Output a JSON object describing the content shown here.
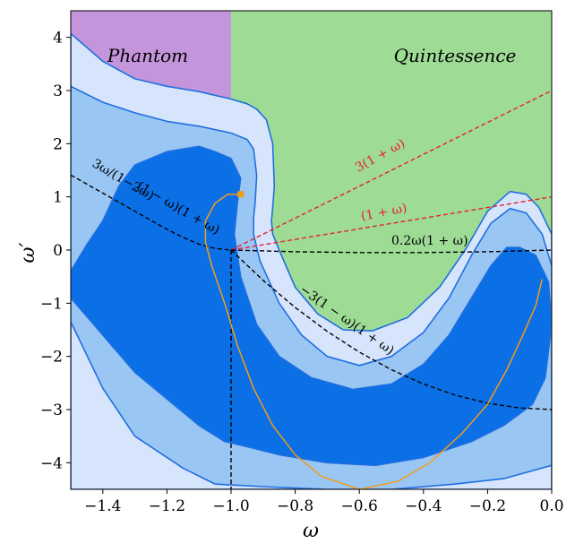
{
  "chart_data": {
    "type": "contour",
    "xlabel": "ω",
    "ylabel": "ω′",
    "xlim": [
      -1.5,
      0.0
    ],
    "ylim": [
      -4.5,
      4.5
    ],
    "x_ticks": [
      -1.4,
      -1.2,
      -1.0,
      -0.8,
      -0.6,
      -0.4,
      -0.2,
      0.0
    ],
    "x_tick_labels": [
      "−1.4",
      "−1.2",
      "−1.0",
      "−0.8",
      "−0.6",
      "−0.4",
      "−0.2",
      "0.0"
    ],
    "y_ticks": [
      -4,
      -3,
      -2,
      -1,
      0,
      1,
      2,
      3,
      4
    ],
    "y_tick_labels": [
      "−4",
      "−3",
      "−2",
      "−1",
      "0",
      "1",
      "2",
      "3",
      "4"
    ],
    "grid": false,
    "regions": [
      {
        "label": "Phantom",
        "x_range": [
          -1.5,
          -1.0
        ],
        "color": "#c495da"
      },
      {
        "label": "Quintessence",
        "x_range": [
          -1.0,
          0.0
        ],
        "color": "#9edc96"
      }
    ],
    "contours": [
      {
        "level": "outer",
        "color": "#d6e5fb",
        "points": [
          [
            -1.5,
            4.07
          ],
          [
            -1.4,
            3.55
          ],
          [
            -1.3,
            3.22
          ],
          [
            -1.2,
            3.08
          ],
          [
            -1.1,
            2.98
          ],
          [
            -1.0,
            2.84
          ],
          [
            -0.95,
            2.75
          ],
          [
            -0.92,
            2.65
          ],
          [
            -0.89,
            2.45
          ],
          [
            -0.87,
            2.0
          ],
          [
            -0.865,
            1.2
          ],
          [
            -0.87,
            0.8
          ],
          [
            -0.874,
            0.55
          ],
          [
            -0.87,
            0.3
          ],
          [
            -0.85,
            0.0
          ],
          [
            -0.8,
            -0.7
          ],
          [
            -0.73,
            -1.2
          ],
          [
            -0.65,
            -1.5
          ],
          [
            -0.56,
            -1.52
          ],
          [
            -0.45,
            -1.27
          ],
          [
            -0.35,
            -0.7
          ],
          [
            -0.27,
            0.0
          ],
          [
            -0.2,
            0.73
          ],
          [
            -0.13,
            1.1
          ],
          [
            -0.08,
            1.05
          ],
          [
            -0.04,
            0.8
          ],
          [
            0.0,
            0.3
          ],
          [
            0.0,
            -4.5
          ],
          [
            -0.22,
            -4.5
          ],
          [
            -0.5,
            -4.5
          ],
          [
            -0.8,
            -4.5
          ],
          [
            -1.05,
            -4.5
          ],
          [
            -1.3,
            -4.5
          ],
          [
            -1.5,
            -4.5
          ]
        ]
      },
      {
        "level": "middle",
        "color": "#9ac6f4",
        "points": [
          [
            -1.5,
            3.08
          ],
          [
            -1.4,
            2.78
          ],
          [
            -1.3,
            2.58
          ],
          [
            -1.2,
            2.42
          ],
          [
            -1.1,
            2.33
          ],
          [
            -1.0,
            2.2
          ],
          [
            -0.95,
            2.08
          ],
          [
            -0.93,
            1.9
          ],
          [
            -0.92,
            1.4
          ],
          [
            -0.925,
            0.9
          ],
          [
            -0.93,
            0.6
          ],
          [
            -0.93,
            0.3
          ],
          [
            -0.91,
            -0.2
          ],
          [
            -0.85,
            -1.0
          ],
          [
            -0.78,
            -1.6
          ],
          [
            -0.7,
            -2.0
          ],
          [
            -0.6,
            -2.17
          ],
          [
            -0.5,
            -2.0
          ],
          [
            -0.4,
            -1.55
          ],
          [
            -0.32,
            -0.9
          ],
          [
            -0.25,
            -0.1
          ],
          [
            -0.19,
            0.5
          ],
          [
            -0.13,
            0.78
          ],
          [
            -0.08,
            0.7
          ],
          [
            -0.03,
            0.3
          ],
          [
            0.0,
            -0.3
          ],
          [
            0.0,
            -4.05
          ],
          [
            -0.15,
            -4.3
          ],
          [
            -0.3,
            -4.4
          ],
          [
            -0.5,
            -4.5
          ],
          [
            -0.7,
            -4.5
          ],
          [
            -0.9,
            -4.45
          ],
          [
            -1.05,
            -4.4
          ],
          [
            -1.15,
            -4.1
          ],
          [
            -1.3,
            -3.5
          ],
          [
            -1.4,
            -2.6
          ],
          [
            -1.5,
            -1.35
          ]
        ]
      },
      {
        "level": "inner",
        "color": "#0b6fe5",
        "points": [
          [
            -1.5,
            -0.4
          ],
          [
            -1.45,
            0.1
          ],
          [
            -1.4,
            0.55
          ],
          [
            -1.35,
            1.2
          ],
          [
            -1.3,
            1.6
          ],
          [
            -1.2,
            1.85
          ],
          [
            -1.1,
            1.95
          ],
          [
            -1.05,
            1.85
          ],
          [
            -1.0,
            1.72
          ],
          [
            -0.97,
            1.35
          ],
          [
            -0.98,
            0.9
          ],
          [
            -0.99,
            0.3
          ],
          [
            -0.97,
            -0.5
          ],
          [
            -0.92,
            -1.4
          ],
          [
            -0.85,
            -2.0
          ],
          [
            -0.75,
            -2.4
          ],
          [
            -0.62,
            -2.62
          ],
          [
            -0.5,
            -2.52
          ],
          [
            -0.4,
            -2.15
          ],
          [
            -0.32,
            -1.6
          ],
          [
            -0.25,
            -0.9
          ],
          [
            -0.19,
            -0.3
          ],
          [
            -0.14,
            0.05
          ],
          [
            -0.1,
            0.05
          ],
          [
            -0.05,
            -0.1
          ],
          [
            -0.01,
            -0.6
          ],
          [
            0.0,
            -1.4
          ],
          [
            -0.02,
            -2.4
          ],
          [
            -0.06,
            -2.9
          ],
          [
            -0.15,
            -3.3
          ],
          [
            -0.25,
            -3.6
          ],
          [
            -0.4,
            -3.9
          ],
          [
            -0.55,
            -4.05
          ],
          [
            -0.7,
            -4.0
          ],
          [
            -0.85,
            -3.85
          ],
          [
            -0.95,
            -3.7
          ],
          [
            -1.02,
            -3.6
          ],
          [
            -1.1,
            -3.3
          ],
          [
            -1.2,
            -2.8
          ],
          [
            -1.3,
            -2.3
          ],
          [
            -1.4,
            -1.6
          ],
          [
            -1.5,
            -0.9
          ]
        ]
      }
    ],
    "lines": [
      {
        "label": "(1+ω)",
        "style": "dashed",
        "color": "#e8202a",
        "points": [
          [
            -1.0,
            0.0
          ],
          [
            0.0,
            1.0
          ]
        ]
      },
      {
        "label": "3(1+ω)",
        "style": "dashed",
        "color": "#e8202a",
        "points": [
          [
            -1.0,
            0.0
          ],
          [
            0.0,
            3.0
          ]
        ]
      },
      {
        "label": "0.2ω(1+ω)",
        "style": "dashed",
        "color": "#000000",
        "points": [
          [
            -1.0,
            0.0
          ],
          [
            -0.8,
            -0.032
          ],
          [
            -0.6,
            -0.048
          ],
          [
            -0.4,
            -0.048
          ],
          [
            -0.2,
            -0.032
          ],
          [
            0.0,
            0.0
          ]
        ]
      },
      {
        "label": "−3(1−ω)(1+ω)",
        "style": "dashed",
        "color": "#000000",
        "points": [
          [
            -1.0,
            0.0
          ],
          [
            -0.9,
            -0.57
          ],
          [
            -0.8,
            -1.08
          ],
          [
            -0.7,
            -1.53
          ],
          [
            -0.6,
            -1.92
          ],
          [
            -0.5,
            -2.25
          ],
          [
            -0.4,
            -2.52
          ],
          [
            -0.3,
            -2.73
          ],
          [
            -0.2,
            -2.88
          ],
          [
            -0.1,
            -2.97
          ],
          [
            0.0,
            -3.0
          ]
        ]
      },
      {
        "label": "3ω/(1−2ω)(1−ω)(1+ω)",
        "style": "dashed",
        "color": "#000000",
        "points": [
          [
            -1.5,
            1.41
          ],
          [
            -1.45,
            1.24
          ],
          [
            -1.4,
            1.07
          ],
          [
            -1.35,
            0.9
          ],
          [
            -1.3,
            0.73
          ],
          [
            -1.25,
            0.56
          ],
          [
            -1.2,
            0.39
          ],
          [
            -1.15,
            0.24
          ],
          [
            -1.1,
            0.11
          ],
          [
            -1.05,
            0.03
          ],
          [
            -1.0,
            0.0
          ]
        ]
      },
      {
        "label": "",
        "style": "dashed",
        "color": "#000000",
        "points": [
          [
            -1.0,
            0.0
          ],
          [
            -1.0,
            -4.5
          ]
        ]
      }
    ],
    "trajectory": {
      "color": "#f29d1b",
      "points": [
        [
          -0.97,
          1.05
        ],
        [
          -1.01,
          1.05
        ],
        [
          -1.05,
          0.88
        ],
        [
          -1.08,
          0.55
        ],
        [
          -1.08,
          0.15
        ],
        [
          -1.06,
          -0.3
        ],
        [
          -1.02,
          -1.0
        ],
        [
          -0.98,
          -1.8
        ],
        [
          -0.93,
          -2.6
        ],
        [
          -0.87,
          -3.3
        ],
        [
          -0.8,
          -3.85
        ],
        [
          -0.72,
          -4.25
        ],
        [
          -0.6,
          -4.5
        ],
        [
          -0.48,
          -4.35
        ],
        [
          -0.38,
          -4.0
        ],
        [
          -0.28,
          -3.45
        ],
        [
          -0.2,
          -2.9
        ],
        [
          -0.14,
          -2.25
        ],
        [
          -0.09,
          -1.6
        ],
        [
          -0.05,
          -1.05
        ],
        [
          -0.03,
          -0.55
        ]
      ]
    },
    "markers": [
      {
        "x": -0.97,
        "y": 1.05,
        "color": "#f29d1b"
      }
    ],
    "annotations": [
      {
        "text": "3(1 + ω)",
        "color": "#e8202a"
      },
      {
        "text": "(1 + ω)",
        "color": "#e8202a"
      },
      {
        "text": "0.2ω(1 + ω)",
        "color": "#000000"
      },
      {
        "text": "−3(1 − ω)(1 + ω)",
        "color": "#000000"
      },
      {
        "text": "3ω/(1−2ω)",
        "color": "#000000"
      },
      {
        "text": "(1 − ω)(1 + ω)",
        "color": "#000000"
      }
    ],
    "region_labels": [
      "Phantom",
      "Quintessence"
    ]
  }
}
